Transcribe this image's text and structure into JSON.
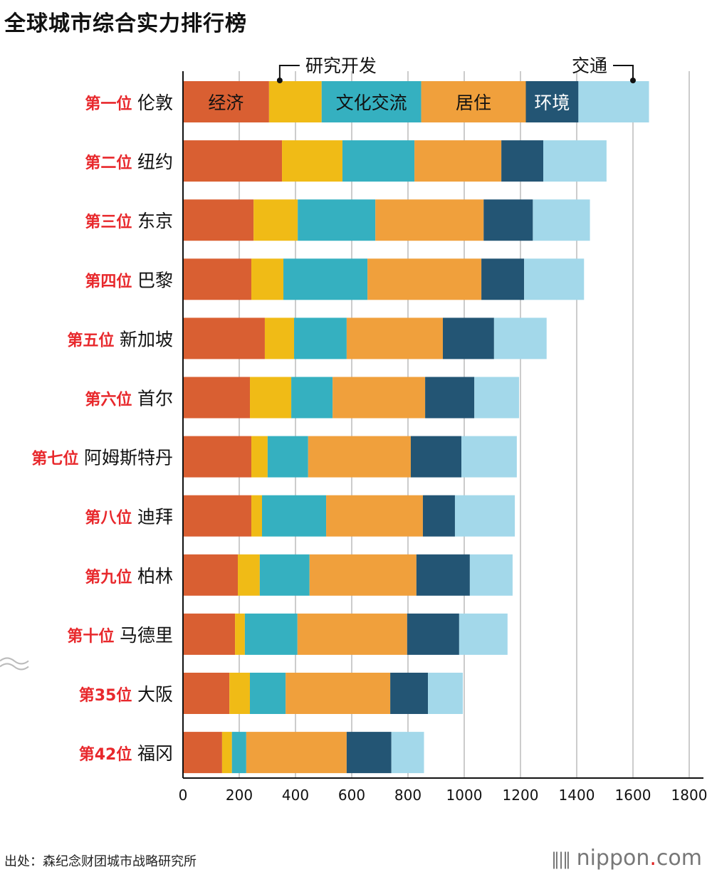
{
  "title": "全球城市综合实力排行榜",
  "source": "出处：森纪念财团城市战略研究所",
  "logo": "nippon.com",
  "chart_data": {
    "type": "bar",
    "orientation": "horizontal",
    "stacked": true,
    "title": "全球城市综合实力排行榜",
    "xlim": [
      0,
      1800
    ],
    "xticks": [
      "0",
      "200",
      "400",
      "600",
      "800",
      "1000",
      "1200",
      "1400",
      "1600",
      "1800"
    ],
    "grid": true,
    "axis_break_after_index": 9,
    "ranks": [
      "第一位",
      "第二位",
      "第三位",
      "第四位",
      "第五位",
      "第六位",
      "第七位",
      "第八位",
      "第九位",
      "第十位",
      "第35位",
      "第42位"
    ],
    "categories": [
      "伦敦",
      "纽约",
      "东京",
      "巴黎",
      "新加坡",
      "首尔",
      "阿姆斯特丹",
      "迪拜",
      "柏林",
      "马德里",
      "大阪",
      "福冈"
    ],
    "series": [
      {
        "name": "经济",
        "color": "#d95f32",
        "values": [
          306,
          352,
          251,
          243,
          291,
          238,
          243,
          243,
          195,
          185,
          165,
          139
        ]
      },
      {
        "name": "研究开发",
        "color": "#f0bb16",
        "values": [
          187,
          215,
          157,
          114,
          104,
          147,
          58,
          38,
          78,
          35,
          73,
          35
        ]
      },
      {
        "name": "文化交流",
        "color": "#35b0c0",
        "values": [
          354,
          256,
          276,
          299,
          187,
          147,
          144,
          228,
          177,
          187,
          127,
          51
        ]
      },
      {
        "name": "居住",
        "color": "#f0a03c",
        "values": [
          372,
          309,
          385,
          405,
          342,
          329,
          365,
          344,
          380,
          390,
          372,
          357
        ]
      },
      {
        "name": "环境",
        "color": "#235574",
        "values": [
          187,
          149,
          175,
          152,
          182,
          175,
          180,
          114,
          190,
          185,
          134,
          159
        ]
      },
      {
        "name": "交通",
        "color": "#a3d8ea",
        "values": [
          251,
          225,
          203,
          213,
          187,
          159,
          197,
          213,
          152,
          172,
          124,
          116
        ]
      }
    ],
    "colors": {
      "rank_label": "#e8282c",
      "grid": "#cccccc"
    }
  }
}
